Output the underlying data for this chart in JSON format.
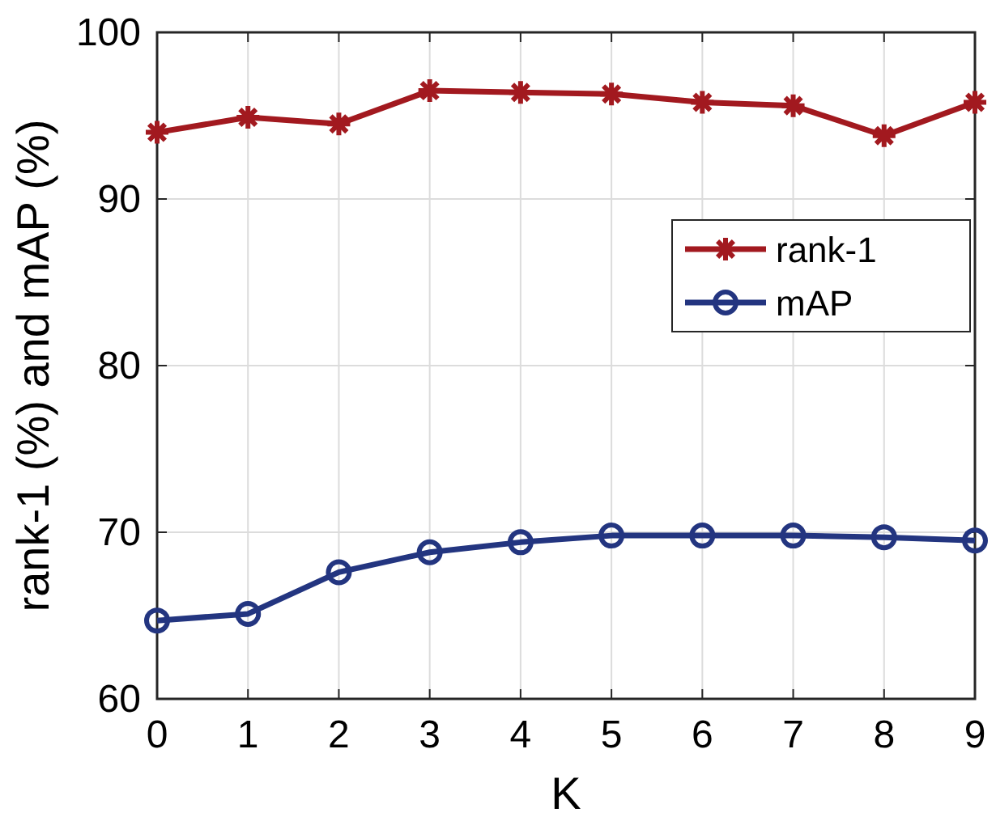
{
  "chart_data": {
    "type": "line",
    "xlabel": "K",
    "ylabel": "rank-1 (%) and mAP (%)",
    "x": [
      0,
      1,
      2,
      3,
      4,
      5,
      6,
      7,
      8,
      9
    ],
    "series": [
      {
        "name": "rank-1",
        "color": "#a2191f",
        "marker": "cross",
        "values": [
          94.0,
          94.9,
          94.5,
          96.5,
          96.4,
          96.3,
          95.8,
          95.6,
          93.8,
          95.8
        ]
      },
      {
        "name": "mAP",
        "color": "#233580",
        "marker": "circle",
        "values": [
          64.7,
          65.1,
          67.6,
          68.8,
          69.4,
          69.8,
          69.8,
          69.8,
          69.7,
          69.5
        ]
      }
    ],
    "xlim": [
      0,
      9
    ],
    "xticks": [
      0,
      1,
      2,
      3,
      4,
      5,
      6,
      7,
      8,
      9
    ],
    "ylim": [
      60,
      100
    ],
    "yticks": [
      60,
      70,
      80,
      90,
      100
    ],
    "grid": true,
    "legend": "right"
  }
}
